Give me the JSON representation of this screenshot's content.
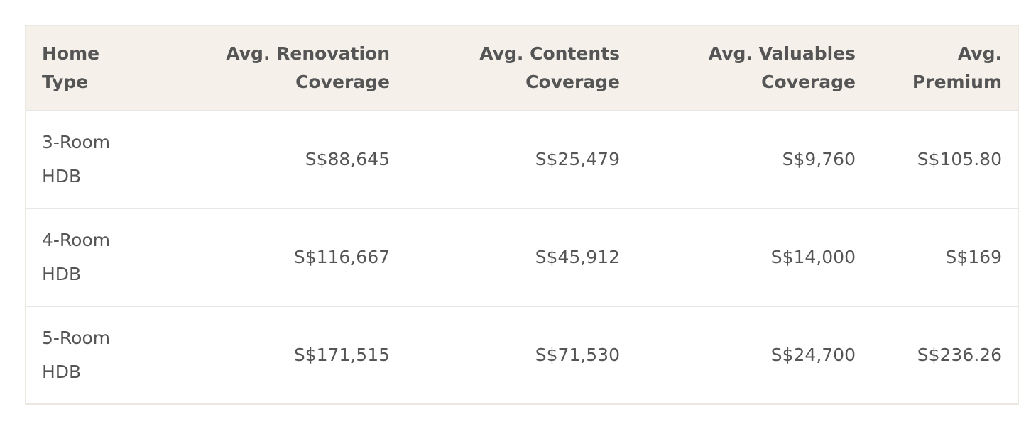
{
  "table": {
    "header": [
      "Home Type",
      "Avg. Renovation Coverage",
      "Avg. Contents Coverage",
      "Avg. Valuables Coverage",
      "Avg. Premium"
    ],
    "rows": [
      [
        "3-Room HDB",
        "S$88,645",
        "S$25,479",
        "S$9,760",
        "S$105.80"
      ],
      [
        "4-Room HDB",
        "S$116,667",
        "S$45,912",
        "S$14,000",
        "S$169"
      ],
      [
        "5-Room HDB",
        "S$171,515",
        "S$71,530",
        "S$24,700",
        "S$236.26"
      ]
    ]
  }
}
